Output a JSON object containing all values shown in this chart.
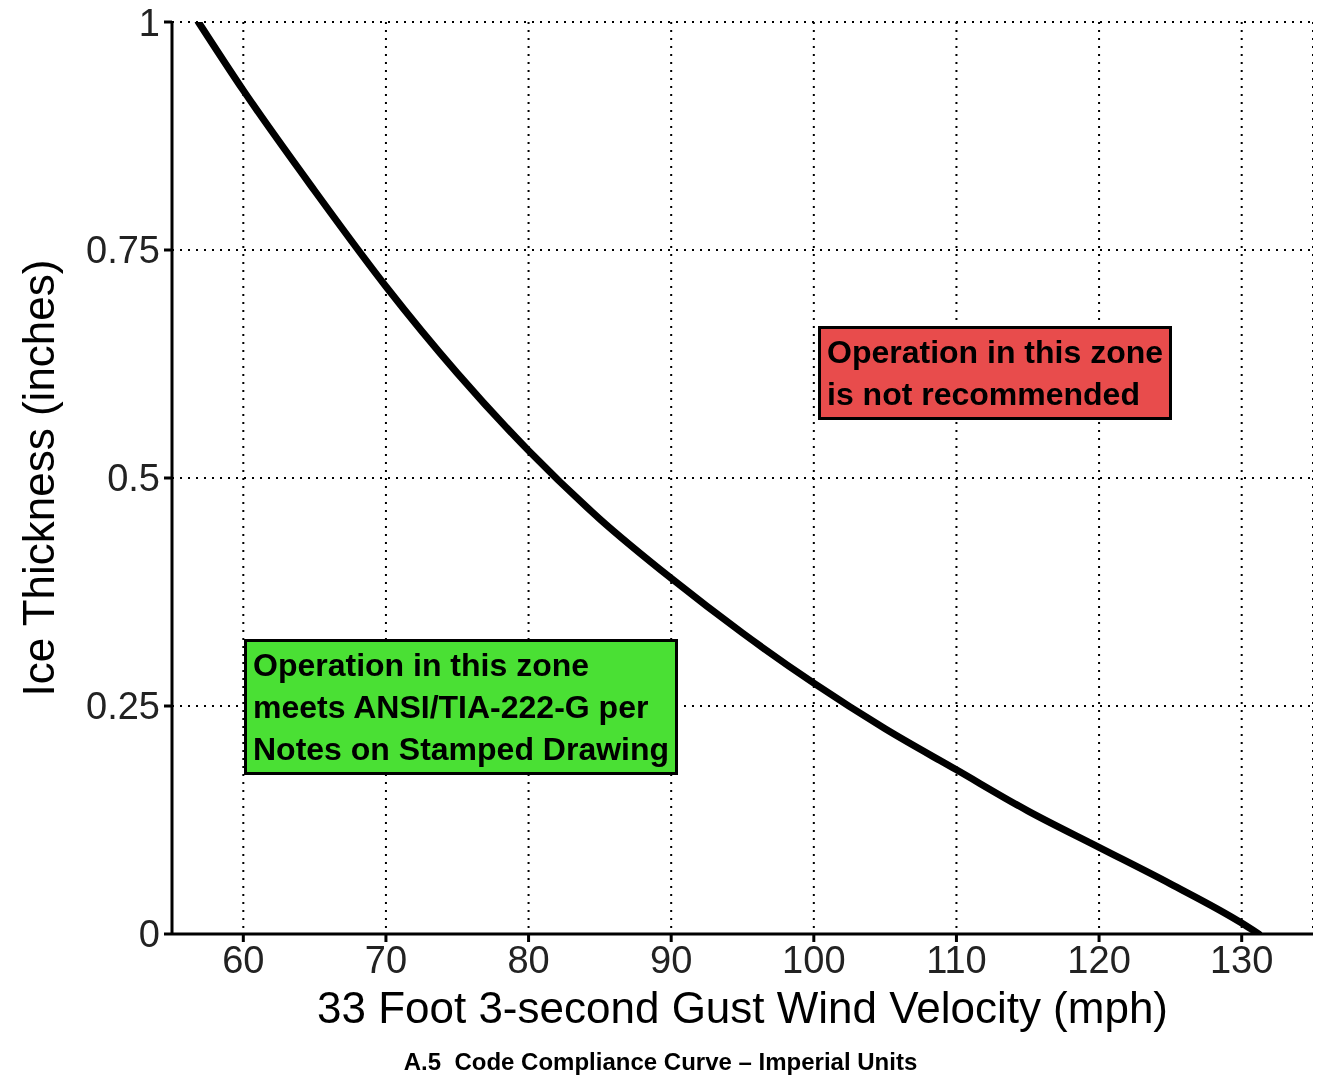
{
  "chart_data": {
    "type": "line",
    "xlabel": "33 Foot 3-second Gust Wind Velocity (mph)",
    "ylabel": "Ice Thickness (inches)",
    "x": [
      56.85,
      60,
      65,
      70,
      75,
      80,
      85,
      90,
      95,
      100,
      105,
      110,
      115,
      120,
      125,
      130,
      131.2
    ],
    "series": [
      {
        "color": "#000000",
        "values": [
          1.0,
          0.925,
          0.815,
          0.71,
          0.615,
          0.53,
          0.455,
          0.39,
          0.33,
          0.275,
          0.225,
          0.18,
          0.135,
          0.095,
          0.055,
          0.012,
          0.0
        ]
      }
    ],
    "xlim": [
      55,
      135
    ],
    "xticks": [
      60,
      70,
      80,
      90,
      100,
      110,
      120,
      130
    ],
    "ylim": [
      0,
      1
    ],
    "yticks": [
      0,
      0.25,
      0.5,
      0.75,
      1
    ],
    "grid": true,
    "marker": "none",
    "line_style": "solid",
    "annotations": [
      "A.5  Code Compliance Curve – Imperial Units",
      "Operation in this zone\nis not recommended",
      "Operation in this zone\nmeets ANSI/TIA-222-G per\nNotes on Stamped Drawing"
    ]
  }
}
